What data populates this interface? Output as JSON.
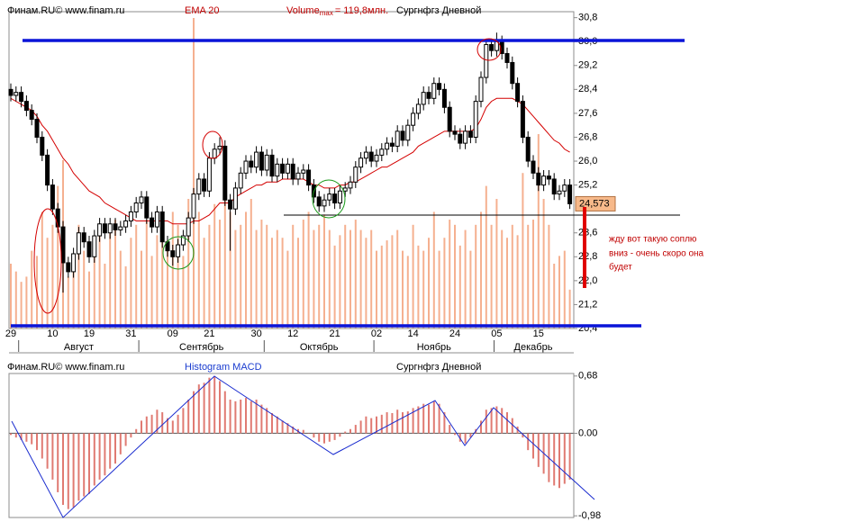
{
  "chart_data": [
    {
      "type": "candlestick",
      "source": "Финам.RU©  www.finam.ru",
      "instrument": "Сургнфгз Дневной",
      "categories": [
        "29",
        null,
        null,
        null,
        null,
        null,
        null,
        null,
        "10",
        null,
        null,
        null,
        null,
        null,
        null,
        "19",
        null,
        null,
        null,
        null,
        null,
        null,
        null,
        "31",
        null,
        null,
        null,
        null,
        null,
        null,
        null,
        "09",
        null,
        null,
        null,
        null,
        null,
        null,
        "21",
        null,
        null,
        null,
        null,
        null,
        null,
        null,
        null,
        "30",
        null,
        null,
        null,
        null,
        null,
        null,
        "12",
        null,
        null,
        null,
        null,
        null,
        null,
        null,
        "21",
        null,
        null,
        null,
        null,
        null,
        null,
        null,
        "02",
        null,
        null,
        null,
        null,
        null,
        null,
        "14",
        null,
        null,
        null,
        null,
        null,
        null,
        null,
        "24",
        null,
        null,
        null,
        null,
        null,
        null,
        null,
        "05",
        null,
        null,
        null,
        null,
        null,
        null,
        null,
        "15",
        null,
        null,
        null,
        null,
        null,
        null
      ],
      "months": [
        {
          "label": "Август",
          "start": 2,
          "end": 24
        },
        {
          "label": "Сентябрь",
          "start": 25,
          "end": 48
        },
        {
          "label": "Октябрь",
          "start": 49,
          "end": 69
        },
        {
          "label": "Ноябрь",
          "start": 70,
          "end": 92
        },
        {
          "label": "Декабрь",
          "start": 93,
          "end": 107
        }
      ],
      "open": [
        28.4,
        28.2,
        28.3,
        28.0,
        27.7,
        27.4,
        26.8,
        26.2,
        25.2,
        24.4,
        23.8,
        22.6,
        22.3,
        22.9,
        23.6,
        23.3,
        22.8,
        23.5,
        23.9,
        23.6,
        23.9,
        23.7,
        23.8,
        24.0,
        24.3,
        24.6,
        24.8,
        24.1,
        23.8,
        24.3,
        23.3,
        23.0,
        22.8,
        23.2,
        23.5,
        24.1,
        24.9,
        25.4,
        25.0,
        26.1,
        26.4,
        26.5,
        24.7,
        24.4,
        25.1,
        25.6,
        26.0,
        25.8,
        26.3,
        25.7,
        26.2,
        25.5,
        25.9,
        25.6,
        25.9,
        25.4,
        25.6,
        25.7,
        25.2,
        24.8,
        24.5,
        24.7,
        24.9,
        24.6,
        25.0,
        25.1,
        25.3,
        25.8,
        26.1,
        26.3,
        26.0,
        26.2,
        26.4,
        26.6,
        26.5,
        27.0,
        26.7,
        27.2,
        27.6,
        27.9,
        28.3,
        28.1,
        28.6,
        28.4,
        27.8,
        27.0,
        26.9,
        26.6,
        27.0,
        26.8,
        28.0,
        28.8,
        29.9,
        29.7,
        30.0,
        29.6,
        29.3,
        28.6,
        28.0,
        26.8,
        26.0,
        25.6,
        25.2,
        25.5,
        25.4,
        24.9,
        25.0,
        25.2
      ],
      "high": [
        28.6,
        28.5,
        28.5,
        28.2,
        27.9,
        27.6,
        27.0,
        26.4,
        25.4,
        24.6,
        24.0,
        22.8,
        23.1,
        23.8,
        23.8,
        23.5,
        23.7,
        24.1,
        24.1,
        24.1,
        24.1,
        24.0,
        24.2,
        24.5,
        24.8,
        25.0,
        25.0,
        24.3,
        24.5,
        24.5,
        23.5,
        23.2,
        23.4,
        23.7,
        24.3,
        25.1,
        25.6,
        25.6,
        26.3,
        26.6,
        26.8,
        26.7,
        24.9,
        25.3,
        25.8,
        26.2,
        26.2,
        26.5,
        26.5,
        26.4,
        26.4,
        26.1,
        26.1,
        26.1,
        26.1,
        25.8,
        25.9,
        25.9,
        25.4,
        25.0,
        24.9,
        25.1,
        25.1,
        25.2,
        25.3,
        25.5,
        26.0,
        26.3,
        26.5,
        26.5,
        26.4,
        26.6,
        26.8,
        26.8,
        27.2,
        27.2,
        27.4,
        27.8,
        28.1,
        28.5,
        28.5,
        28.8,
        28.8,
        28.6,
        28.0,
        27.2,
        27.1,
        27.2,
        27.2,
        28.2,
        29.0,
        30.1,
        30.1,
        30.3,
        30.2,
        29.8,
        29.5,
        28.8,
        28.2,
        27.0,
        26.2,
        25.8,
        25.7,
        25.7,
        25.6,
        25.2,
        25.4,
        25.4
      ],
      "low": [
        28.0,
        28.0,
        27.8,
        27.5,
        27.2,
        26.6,
        26.0,
        25.0,
        24.2,
        23.6,
        21.6,
        22.1,
        22.1,
        22.7,
        23.1,
        22.6,
        22.6,
        23.3,
        23.4,
        23.4,
        23.5,
        23.5,
        23.6,
        23.8,
        24.1,
        24.4,
        23.9,
        23.6,
        23.6,
        23.1,
        22.8,
        22.5,
        22.6,
        23.0,
        23.3,
        23.9,
        24.7,
        24.8,
        24.8,
        25.9,
        26.2,
        24.5,
        23.0,
        24.2,
        24.9,
        25.4,
        25.6,
        25.6,
        25.5,
        25.5,
        25.3,
        25.3,
        25.4,
        25.4,
        25.2,
        25.2,
        25.4,
        25.0,
        24.6,
        24.3,
        24.3,
        24.5,
        24.4,
        24.4,
        24.8,
        24.9,
        25.1,
        25.6,
        25.9,
        25.8,
        25.8,
        26.0,
        26.2,
        26.3,
        26.3,
        26.5,
        26.5,
        27.0,
        27.4,
        27.7,
        27.9,
        27.9,
        28.2,
        27.6,
        26.8,
        26.7,
        26.4,
        26.4,
        26.6,
        26.6,
        27.8,
        28.6,
        29.5,
        29.5,
        29.4,
        29.1,
        28.4,
        27.8,
        26.6,
        25.8,
        25.4,
        25.0,
        25.0,
        25.2,
        24.7,
        24.7,
        24.8,
        24.4
      ],
      "close": [
        28.2,
        28.3,
        28.0,
        27.7,
        27.4,
        26.8,
        26.2,
        25.2,
        24.4,
        23.8,
        22.6,
        22.3,
        22.9,
        23.6,
        23.3,
        22.8,
        23.5,
        23.9,
        23.6,
        23.9,
        23.7,
        23.8,
        24.0,
        24.3,
        24.6,
        24.8,
        24.1,
        23.8,
        24.3,
        23.3,
        23.0,
        22.8,
        23.2,
        23.5,
        24.1,
        24.9,
        25.4,
        25.0,
        26.1,
        26.4,
        26.5,
        24.7,
        24.4,
        25.1,
        25.6,
        26.0,
        25.8,
        26.3,
        25.7,
        26.2,
        25.5,
        25.9,
        25.6,
        25.9,
        25.4,
        25.6,
        25.7,
        25.2,
        24.8,
        24.5,
        24.7,
        24.9,
        24.6,
        25.0,
        25.1,
        25.3,
        25.8,
        26.1,
        26.3,
        26.0,
        26.2,
        26.4,
        26.6,
        26.5,
        27.0,
        26.7,
        27.2,
        27.6,
        27.9,
        28.3,
        28.1,
        28.6,
        28.4,
        27.8,
        27.0,
        26.9,
        26.6,
        27.0,
        26.8,
        28.0,
        28.8,
        29.9,
        29.7,
        30.0,
        29.6,
        29.3,
        28.6,
        28.0,
        26.8,
        26.0,
        25.6,
        25.2,
        25.5,
        25.4,
        24.9,
        25.0,
        25.2,
        24.573
      ],
      "series": [
        {
          "name": "EMA 20",
          "color": "#d40000",
          "values": [
            28.1,
            28.0,
            27.9,
            27.8,
            27.7,
            27.5,
            27.2,
            27.0,
            26.7,
            26.4,
            26.1,
            25.9,
            25.6,
            25.4,
            25.2,
            25.0,
            24.9,
            24.8,
            24.6,
            24.5,
            24.4,
            24.3,
            24.2,
            24.1,
            24.0,
            24.0,
            24.0,
            24.0,
            24.0,
            24.0,
            24.0,
            23.9,
            23.9,
            23.9,
            23.9,
            24.0,
            24.0,
            24.1,
            24.2,
            24.4,
            24.6,
            24.6,
            24.6,
            24.8,
            24.9,
            25.0,
            25.1,
            25.2,
            25.2,
            25.3,
            25.3,
            25.3,
            25.4,
            25.4,
            25.4,
            25.4,
            25.4,
            25.3,
            25.2,
            25.2,
            25.1,
            25.1,
            25.1,
            25.2,
            25.2,
            25.3,
            25.3,
            25.4,
            25.5,
            25.6,
            25.7,
            25.8,
            25.8,
            25.9,
            26.0,
            26.1,
            26.2,
            26.3,
            26.5,
            26.6,
            26.7,
            26.8,
            26.9,
            27.0,
            27.0,
            27.0,
            27.0,
            27.0,
            27.0,
            27.1,
            27.4,
            27.8,
            28.0,
            28.1,
            28.1,
            28.1,
            28.1,
            28.0,
            27.9,
            27.7,
            27.5,
            27.3,
            27.1,
            26.9,
            26.7,
            26.6,
            26.4,
            26.3
          ]
        }
      ],
      "volume": {
        "name": "Volume",
        "name_sub": "max",
        "max": {
          "value": 119.8,
          "label": "= 119,8млн."
        },
        "color": "#f5b090",
        "values": [
          25,
          22,
          18,
          20,
          30,
          28,
          45,
          35,
          40,
          55,
          65,
          20,
          25,
          40,
          30,
          22,
          35,
          40,
          25,
          38,
          42,
          30,
          24,
          35,
          40,
          30,
          42,
          28,
          36,
          38,
          34,
          45,
          40,
          28,
          50,
          119.8,
          45,
          35,
          40,
          48,
          42,
          55,
          45,
          38,
          40,
          45,
          50,
          38,
          42,
          40,
          35,
          38,
          35,
          30,
          40,
          35,
          42,
          45,
          38,
          40,
          44,
          38,
          32,
          36,
          40,
          38,
          42,
          38,
          35,
          38,
          30,
          32,
          34,
          36,
          38,
          30,
          28,
          40,
          32,
          30,
          35,
          45,
          30,
          35,
          42,
          40,
          32,
          38,
          30,
          40,
          45,
          55,
          40,
          50,
          38,
          35,
          40,
          36,
          60,
          40,
          42,
          75,
          50,
          40,
          25,
          28,
          30,
          15
        ]
      },
      "last_price": {
        "value": 24.573,
        "label": "24,573"
      },
      "ylim": [
        20.4,
        31.0
      ],
      "yticks": [
        {
          "value": 30.8,
          "label": "30,8"
        },
        {
          "value": 30.0,
          "label": "30,0"
        },
        {
          "value": 29.2,
          "label": "29,2"
        },
        {
          "value": 28.4,
          "label": "28,4"
        },
        {
          "value": 27.6,
          "label": "27,6"
        },
        {
          "value": 26.8,
          "label": "26,8"
        },
        {
          "value": 26.0,
          "label": "26,0"
        },
        {
          "value": 25.2,
          "label": "25,2"
        },
        {
          "value": 23.6,
          "label": "23,6"
        },
        {
          "value": 22.8,
          "label": "22,8"
        },
        {
          "value": 22.0,
          "label": "22,0"
        },
        {
          "value": 21.2,
          "label": "21,2"
        },
        {
          "value": 20.4,
          "label": "20,4"
        }
      ],
      "annotation": [
        "жду вот такую соплю",
        "вниз - очень скоро она",
        "будет"
      ]
    },
    {
      "type": "bar",
      "source": "Финам.RU©  www.finam.ru",
      "title": "Histogram MACD",
      "instrument": "Сургнфгз Дневной",
      "color": "#e07a72",
      "values": [
        -0.02,
        -0.05,
        -0.08,
        -0.1,
        -0.13,
        -0.2,
        -0.3,
        -0.42,
        -0.55,
        -0.7,
        -0.85,
        -0.9,
        -0.88,
        -0.8,
        -0.75,
        -0.72,
        -0.62,
        -0.55,
        -0.5,
        -0.42,
        -0.36,
        -0.25,
        -0.15,
        -0.05,
        0.05,
        0.15,
        0.2,
        0.22,
        0.28,
        0.25,
        0.18,
        0.15,
        0.22,
        0.3,
        0.4,
        0.5,
        0.58,
        0.6,
        0.66,
        0.68,
        0.62,
        0.5,
        0.4,
        0.38,
        0.4,
        0.42,
        0.38,
        0.4,
        0.34,
        0.3,
        0.24,
        0.2,
        0.15,
        0.12,
        0.08,
        0.05,
        0.04,
        0,
        -0.05,
        -0.1,
        -0.12,
        -0.1,
        -0.08,
        -0.04,
        0.02,
        0.05,
        0.1,
        0.15,
        0.2,
        0.18,
        0.2,
        0.22,
        0.25,
        0.24,
        0.28,
        0.25,
        0.26,
        0.3,
        0.32,
        0.35,
        0.34,
        0.38,
        0.35,
        0.25,
        0.1,
        -0.02,
        -0.1,
        -0.12,
        -0.05,
        0.05,
        0.15,
        0.28,
        0.3,
        0.32,
        0.3,
        0.25,
        0.18,
        0.08,
        -0.05,
        -0.2,
        -0.3,
        -0.4,
        -0.48,
        -0.58,
        -0.62,
        -0.65,
        -0.6,
        -0.55
      ],
      "ylim": [
        -1.0,
        0.71
      ],
      "yticks": [
        {
          "value": 0.68,
          "label": "0,68"
        },
        {
          "value": 0,
          "label": "0.00"
        },
        {
          "value": -0.98,
          "label": "-0,98"
        }
      ]
    }
  ]
}
